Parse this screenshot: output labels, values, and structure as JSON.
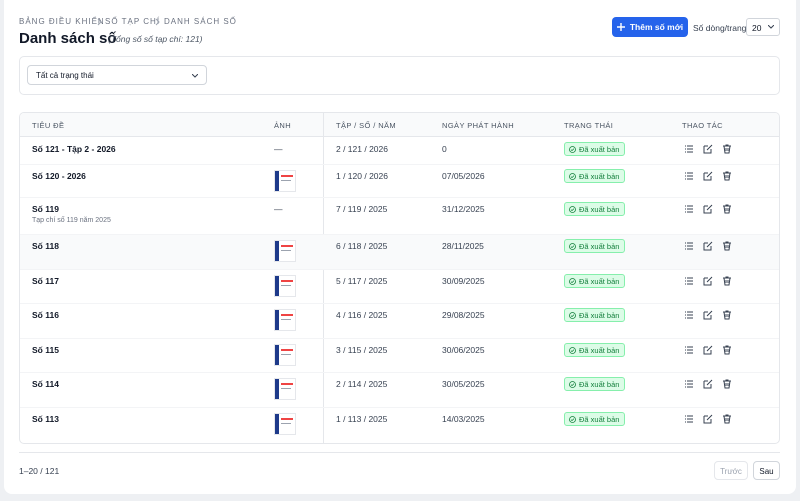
{
  "breadcrumb": [
    "BẢNG ĐIỀU KHIỂN",
    "SỐ TẠP CHÍ",
    "DANH SÁCH SỐ"
  ],
  "header": {
    "title": "Danh sách số",
    "subtitle": "(Tổng số số tạp chí: 121)",
    "add_button": "Thêm số mới",
    "page_size_label": "Số dòng/trang",
    "page_size": "20"
  },
  "filter": {
    "status": "Tất cả trạng thái"
  },
  "table": {
    "columns": [
      "TIÊU ĐỀ",
      "ẢNH",
      "TẬP / SỐ / NĂM",
      "NGÀY PHÁT HÀNH",
      "TRẠNG THÁI",
      "THAO TÁC"
    ],
    "rows": [
      {
        "title": "Số 121 - Tập 2 - 2026",
        "image": "—",
        "volume": "2 / 121 / 2026",
        "date": "0",
        "status": "Đã xuất bản"
      },
      {
        "title": "Số 120 - 2026",
        "volume": "1 / 120 / 2026",
        "date": "07/05/2026",
        "status": "Đã xuất bản"
      },
      {
        "title": "Số 119",
        "subtitle": "Tạp chí số 119 năm 2025",
        "image": "—",
        "volume": "7 / 119 / 2025",
        "date": "31/12/2025",
        "status": "Đã xuất bản"
      },
      {
        "title": "Số 118",
        "volume": "6 / 118 / 2025",
        "date": "28/11/2025",
        "status": "Đã xuất bản"
      },
      {
        "title": "Số 117",
        "volume": "5 / 117 / 2025",
        "date": "30/09/2025",
        "status": "Đã xuất bản"
      },
      {
        "title": "Số 116",
        "volume": "4 / 116 / 2025",
        "date": "29/08/2025",
        "status": "Đã xuất bản"
      },
      {
        "title": "Số 115",
        "volume": "3 / 115 / 2025",
        "date": "30/06/2025",
        "status": "Đã xuất bản"
      },
      {
        "title": "Số 114",
        "volume": "2 / 114 / 2025",
        "date": "30/05/2025",
        "status": "Đã xuất bản"
      },
      {
        "title": "Số 113",
        "volume": "1 / 113 / 2025",
        "date": "14/03/2025",
        "status": "Đã xuất bản"
      }
    ]
  },
  "pagination": {
    "range": "1–20 / 121",
    "prev": "Trước",
    "next": "Sau"
  }
}
